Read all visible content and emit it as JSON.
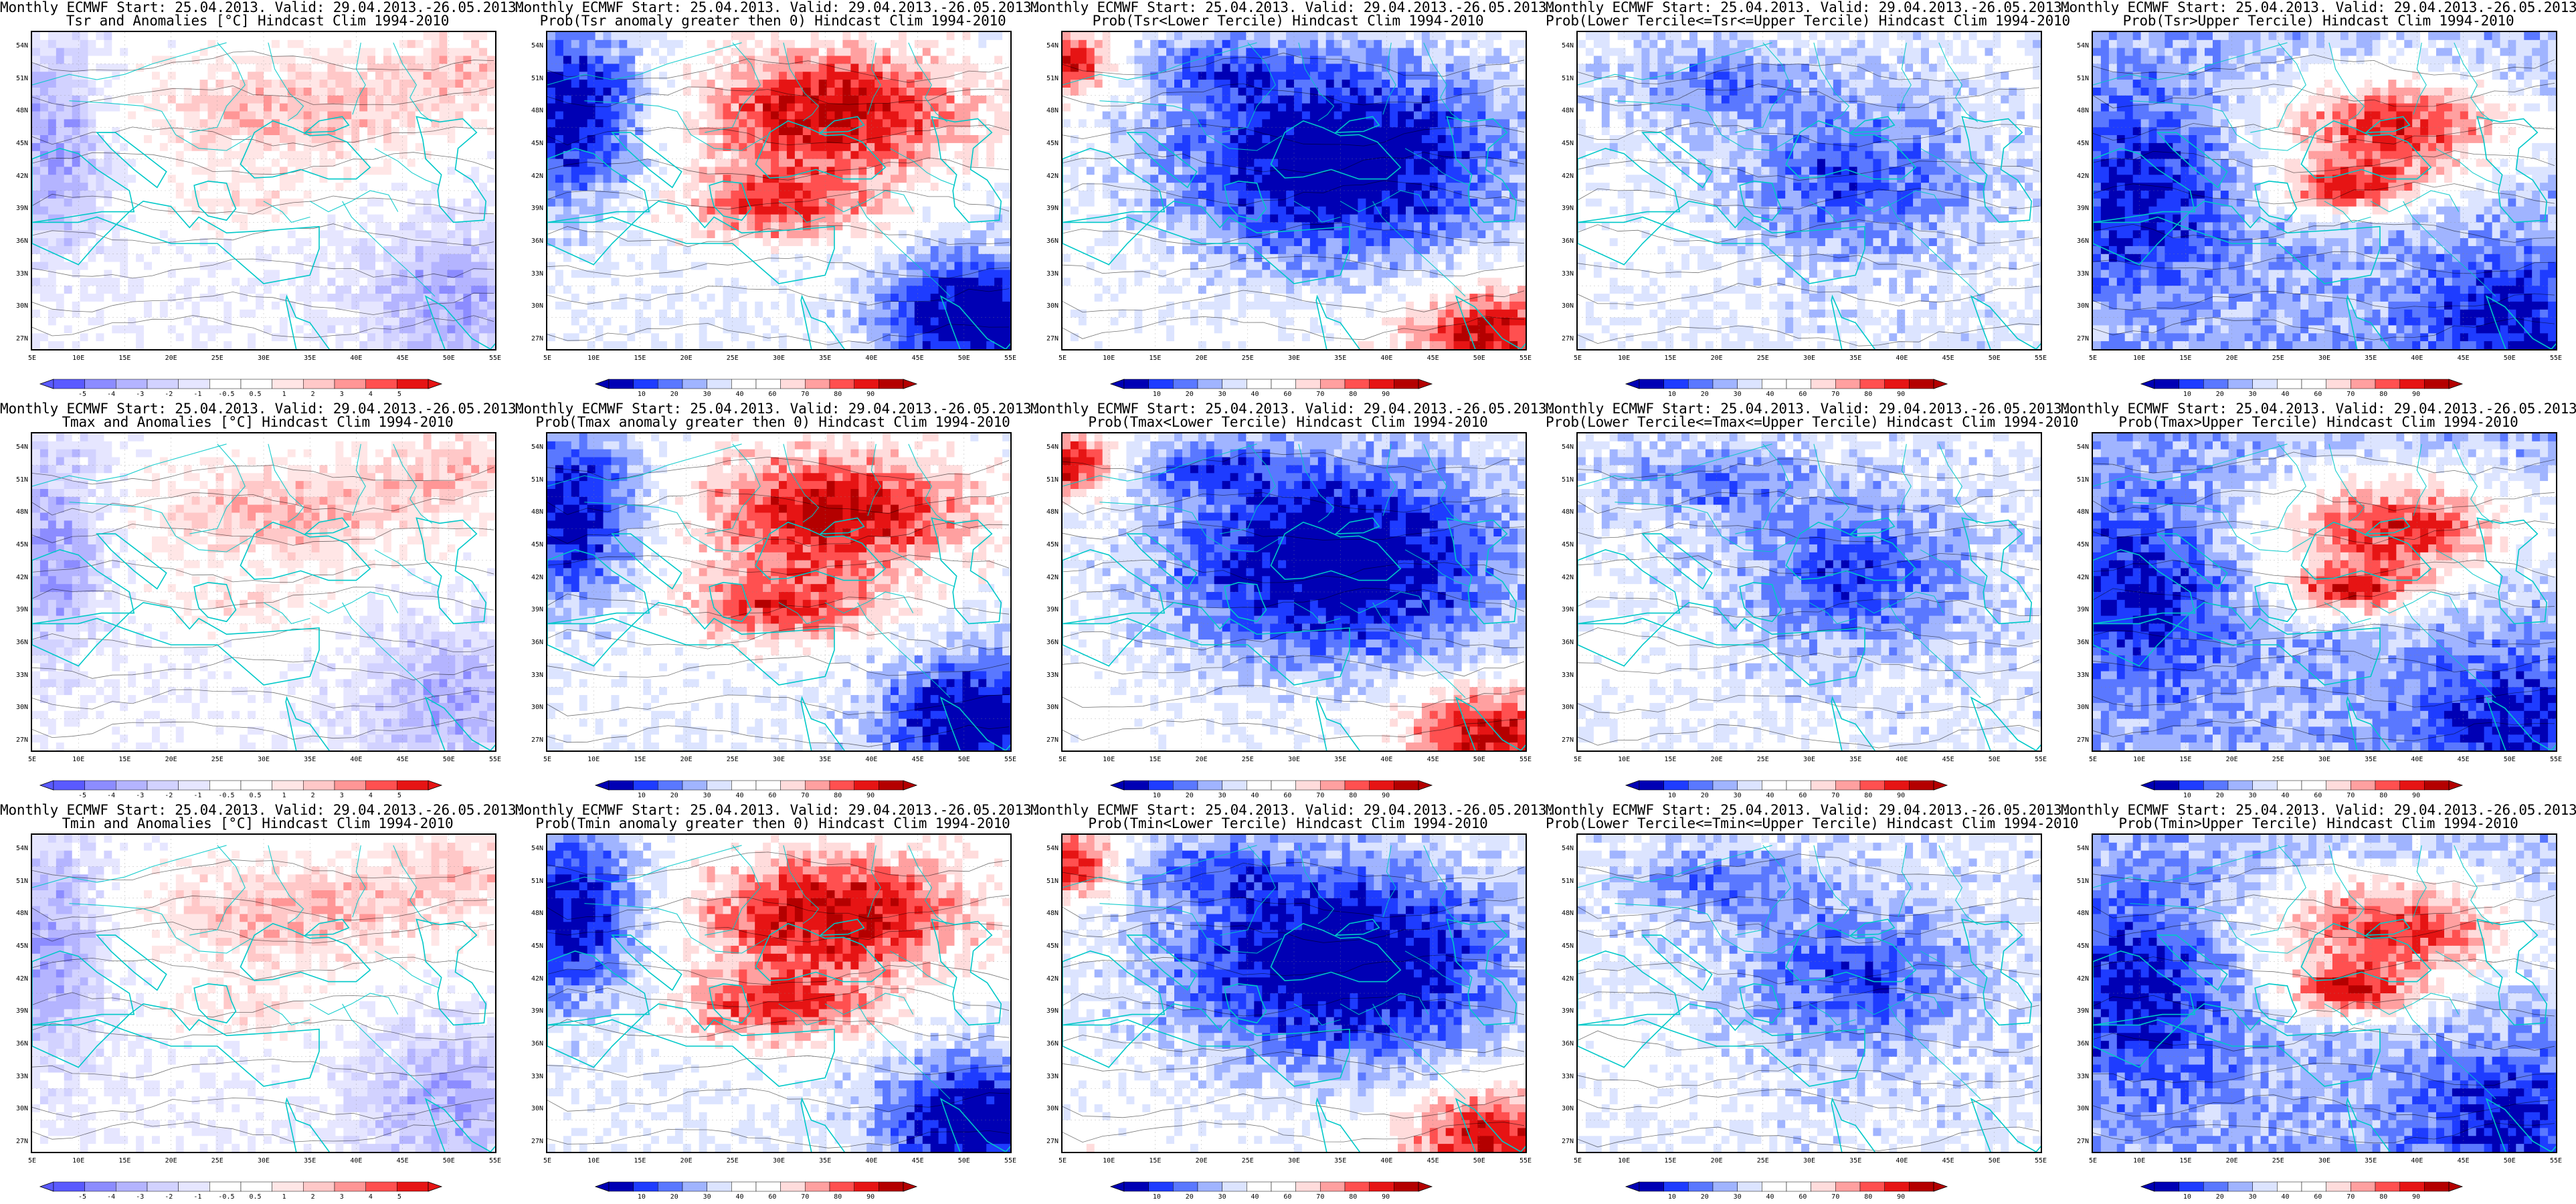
{
  "figure": {
    "colors": {
      "probability_scale": [
        "#0000b4",
        "#1e3cff",
        "#5a78ff",
        "#a0b4ff",
        "#dce4ff",
        "#ffffff",
        "#ffffff",
        "#ffdcdc",
        "#ffa0a0",
        "#ff5050",
        "#e61414",
        "#b40000"
      ],
      "anomaly_scale": [
        "#5a5aff",
        "#8c8cff",
        "#b4b4ff",
        "#d2d2ff",
        "#e6e6ff",
        "#ffffff",
        "#ffffff",
        "#ffe6e6",
        "#ffc8c8",
        "#ff9696",
        "#ff5050",
        "#e61414"
      ],
      "coast": "#00c8c8",
      "contour": "#000000"
    },
    "map": {
      "lon_labels": [
        "5E",
        "10E",
        "15E",
        "20E",
        "25E",
        "30E",
        "35E",
        "40E",
        "45E",
        "50E",
        "55E"
      ],
      "lat_labels": [
        "54N",
        "51N",
        "48N",
        "45N",
        "42N",
        "39N",
        "36N",
        "33N",
        "30N",
        "27N"
      ]
    },
    "colorbars": {
      "anomaly": [
        "-5",
        "-4",
        "-3",
        "-2",
        "-1",
        "-0.5",
        "0.5",
        "1",
        "2",
        "3",
        "4",
        "5"
      ],
      "probability": [
        "10",
        "20",
        "30",
        "40",
        "60",
        "70",
        "80",
        "90"
      ]
    },
    "rows": [
      {
        "variable": "Tsr",
        "panels": [
          {
            "type": "anomaly",
            "line1": "Monthly ECMWF Start: 25.04.2013. Valid: 29.04.2013.-26.05.2013.",
            "line2": "Tsr and Anomalies [°C] Hindcast Clim 1994-2010"
          },
          {
            "type": "prob_pos",
            "line1": "Monthly ECMWF Start: 25.04.2013. Valid: 29.04.2013.-26.05.2013.",
            "line2": "Prob(Tsr anomaly greater then 0) Hindcast Clim 1994-2010"
          },
          {
            "type": "prob_low",
            "line1": "Monthly ECMWF Start: 25.04.2013. Valid: 29.04.2013.-26.05.2013.",
            "line2": "Prob(Tsr<Lower Tercile) Hindcast Clim 1994-2010"
          },
          {
            "type": "prob_mid",
            "line1": "Monthly ECMWF Start: 25.04.2013. Valid: 29.04.2013.-26.05.2013.",
            "line2": "Prob(Lower Tercile<=Tsr<=Upper Tercile) Hindcast Clim 1994-2010"
          },
          {
            "type": "prob_up",
            "line1": "Monthly ECMWF Start: 25.04.2013. Valid: 29.04.2013.-26.05.2013.",
            "line2": "Prob(Tsr>Upper Tercile) Hindcast Clim 1994-2010"
          }
        ]
      },
      {
        "variable": "Tmax",
        "panels": [
          {
            "type": "anomaly",
            "line1": "Monthly ECMWF Start: 25.04.2013. Valid: 29.04.2013.-26.05.2013.",
            "line2": "Tmax and Anomalies [°C] Hindcast Clim 1994-2010"
          },
          {
            "type": "prob_pos",
            "line1": "Monthly ECMWF Start: 25.04.2013. Valid: 29.04.2013.-26.05.2013.",
            "line2": "Prob(Tmax anomaly greater then 0) Hindcast Clim 1994-2010"
          },
          {
            "type": "prob_low",
            "line1": "Monthly ECMWF Start: 25.04.2013. Valid: 29.04.2013.-26.05.2013.",
            "line2": "Prob(Tmax<Lower Tercile) Hindcast Clim 1994-2010"
          },
          {
            "type": "prob_mid",
            "line1": "Monthly ECMWF Start: 25.04.2013. Valid: 29.04.2013.-26.05.2013.",
            "line2": "Prob(Lower Tercile<=Tmax<=Upper Tercile) Hindcast Clim 1994-2010"
          },
          {
            "type": "prob_up",
            "line1": "Monthly ECMWF Start: 25.04.2013. Valid: 29.04.2013.-26.05.2013.",
            "line2": "Prob(Tmax>Upper Tercile) Hindcast Clim 1994-2010"
          }
        ]
      },
      {
        "variable": "Tmin",
        "panels": [
          {
            "type": "anomaly",
            "line1": "Monthly ECMWF Start: 25.04.2013. Valid: 29.04.2013.-26.05.2013.",
            "line2": "Tmin and Anomalies [°C] Hindcast Clim 1994-2010"
          },
          {
            "type": "prob_pos",
            "line1": "Monthly ECMWF Start: 25.04.2013. Valid: 29.04.2013.-26.05.2013.",
            "line2": "Prob(Tmin anomaly greater then 0) Hindcast Clim 1994-2010"
          },
          {
            "type": "prob_low",
            "line1": "Monthly ECMWF Start: 25.04.2013. Valid: 29.04.2013.-26.05.2013.",
            "line2": "Prob(Tmin<Lower Tercile) Hindcast Clim 1994-2010"
          },
          {
            "type": "prob_mid",
            "line1": "Monthly ECMWF Start: 25.04.2013. Valid: 29.04.2013.-26.05.2013.",
            "line2": "Prob(Lower Tercile<=Tmin<=Upper Tercile) Hindcast Clim 1994-2010"
          },
          {
            "type": "prob_up",
            "line1": "Monthly ECMWF Start: 25.04.2013. Valid: 29.04.2013.-26.05.2013.",
            "line2": "Prob(Tmin>Upper Tercile) Hindcast Clim 1994-2010"
          }
        ]
      }
    ]
  }
}
